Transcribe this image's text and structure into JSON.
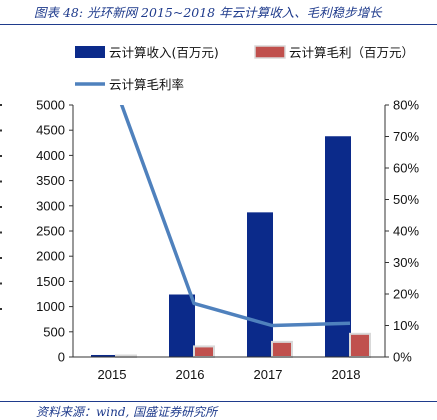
{
  "title": "图表 48:  光环新网 2015~2018 年云计算收入、毛利稳步增长",
  "source": "资料来源：wind, 国盛证券研究所",
  "chart_data": {
    "type": "bar",
    "categories": [
      "2015",
      "2016",
      "2017",
      "2018"
    ],
    "series": [
      {
        "name": "云计算收入(百万元)",
        "kind": "bar",
        "axis": "left",
        "color": "#0b2a8a",
        "values": [
          40,
          1240,
          2870,
          4380
        ]
      },
      {
        "name": "云计算毛利（百万元）",
        "kind": "bar",
        "axis": "left",
        "color": "#c0504d",
        "values": [
          20,
          210,
          300,
          460
        ]
      },
      {
        "name": "云计算毛利率",
        "kind": "line",
        "axis": "right",
        "color": "#4f81bd",
        "values": [
          0.85,
          0.17,
          0.1,
          0.107
        ]
      }
    ],
    "y_left": {
      "min": 0,
      "max": 5000,
      "step": 500,
      "ticks": [
        "0",
        "500",
        "1000",
        "1500",
        "2000",
        "2500",
        "3000",
        "3500",
        "4000",
        "4500",
        "5000"
      ]
    },
    "y_right": {
      "min": 0,
      "max": 0.8,
      "step": 0.1,
      "ticks": [
        "0%",
        "10%",
        "20%",
        "30%",
        "40%",
        "50%",
        "60%",
        "70%",
        "80%"
      ]
    },
    "legend_position": "top",
    "grid": false
  }
}
